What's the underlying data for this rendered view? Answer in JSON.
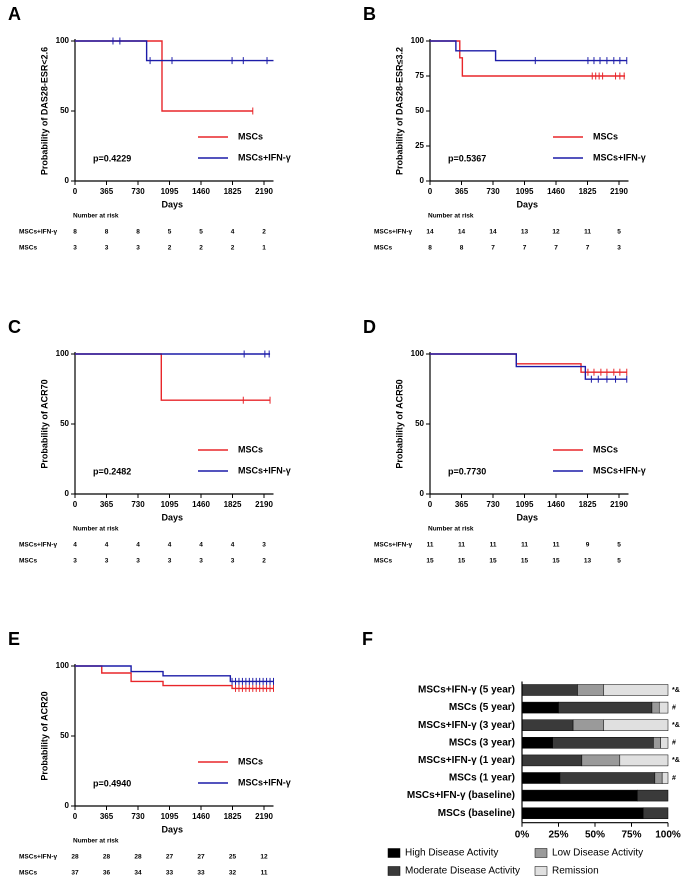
{
  "chart_data": [
    {
      "type": "step",
      "panel": "A",
      "ylabel": "Probability of DAS28-ESR<2.6",
      "xlabel": "Days",
      "xlim": [
        0,
        2300
      ],
      "xticks": [
        0,
        365,
        730,
        1095,
        1460,
        1825,
        2190
      ],
      "ylim": [
        0,
        100
      ],
      "yticks": [
        0,
        50,
        100
      ],
      "annotation": "p=0.4229",
      "series": [
        {
          "name": "MSCs",
          "color": "#e8262a",
          "x": [
            0,
            1008,
            1008,
            2060
          ],
          "values": [
            100,
            100,
            50,
            50
          ],
          "censored_x": [
            2060
          ],
          "censored_values": [
            50
          ]
        },
        {
          "name": "MSCs+IFN-γ",
          "color": "#1c1ca8",
          "x": [
            0,
            830,
            830,
            2300
          ],
          "values": [
            100,
            100,
            86,
            86
          ],
          "censored_x": [
            440,
            520,
            870,
            1124,
            1820,
            1950,
            2225
          ],
          "censored_values": [
            100,
            100,
            86,
            86,
            86,
            86,
            86
          ]
        }
      ],
      "risk_table": {
        "title": "Number at risk",
        "rows": [
          {
            "label": "MSCs+IFN-γ",
            "color": "#1c1ca8",
            "values": [
              8,
              8,
              8,
              5,
              5,
              4,
              2
            ]
          },
          {
            "label": "MSCs",
            "color": "#e8262a",
            "values": [
              3,
              3,
              3,
              2,
              2,
              2,
              1
            ]
          }
        ]
      }
    },
    {
      "type": "step",
      "panel": "B",
      "ylabel": "Probability of DAS28-ESR≤3.2",
      "xlabel": "Days",
      "xlim": [
        0,
        2300
      ],
      "xticks": [
        0,
        365,
        730,
        1095,
        1460,
        1825,
        2190
      ],
      "ylim": [
        0,
        100
      ],
      "yticks": [
        0,
        25,
        50,
        75,
        100
      ],
      "annotation": "p=0.5367",
      "series": [
        {
          "name": "MSCs",
          "color": "#e8262a",
          "x": [
            0,
            345,
            345,
            375,
            375,
            2260
          ],
          "values": [
            100,
            100,
            88,
            88,
            75,
            75
          ],
          "censored_x": [
            1880,
            1920,
            1960,
            2000,
            2150,
            2200,
            2250
          ],
          "censored_values": [
            75,
            75,
            75,
            75,
            75,
            75,
            75
          ]
        },
        {
          "name": "MSCs+IFN-γ",
          "color": "#1c1ca8",
          "x": [
            0,
            300,
            300,
            760,
            760,
            2280
          ],
          "values": [
            100,
            100,
            93,
            93,
            86,
            86
          ],
          "censored_x": [
            1220,
            1830,
            1900,
            1970,
            2050,
            2130,
            2200,
            2280
          ],
          "censored_values": [
            86,
            86,
            86,
            86,
            86,
            86,
            86,
            86
          ]
        }
      ],
      "risk_table": {
        "title": "Number at risk",
        "rows": [
          {
            "label": "MSCs+IFN-γ",
            "color": "#1c1ca8",
            "values": [
              14,
              14,
              14,
              13,
              12,
              11,
              5
            ]
          },
          {
            "label": "MSCs",
            "color": "#e8262a",
            "values": [
              8,
              8,
              7,
              7,
              7,
              7,
              3
            ]
          }
        ]
      }
    },
    {
      "type": "step",
      "panel": "C",
      "ylabel": "Probability of ACR70",
      "xlabel": "Days",
      "xlim": [
        0,
        2300
      ],
      "xticks": [
        0,
        365,
        730,
        1095,
        1460,
        1825,
        2190
      ],
      "ylim": [
        0,
        100
      ],
      "yticks": [
        0,
        50,
        100
      ],
      "annotation": "p=0.2482",
      "series": [
        {
          "name": "MSCs",
          "color": "#e8262a",
          "x": [
            0,
            1000,
            1000,
            2260
          ],
          "values": [
            100,
            100,
            67,
            67
          ],
          "censored_x": [
            1950,
            2260
          ],
          "censored_values": [
            67,
            67
          ]
        },
        {
          "name": "MSCs+IFN-γ",
          "color": "#1c1ca8",
          "x": [
            0,
            2260
          ],
          "values": [
            100,
            100
          ],
          "censored_x": [
            1960,
            2200,
            2250
          ],
          "censored_values": [
            100,
            100,
            100
          ]
        }
      ],
      "risk_table": {
        "title": "Number at risk",
        "rows": [
          {
            "label": "MSCs+IFN-γ",
            "color": "#1c1ca8",
            "values": [
              4,
              4,
              4,
              4,
              4,
              4,
              3
            ]
          },
          {
            "label": "MSCs",
            "color": "#e8262a",
            "values": [
              3,
              3,
              3,
              3,
              3,
              3,
              2
            ]
          }
        ]
      }
    },
    {
      "type": "step",
      "panel": "D",
      "ylabel": "Probability of ACR50",
      "xlabel": "Days",
      "xlim": [
        0,
        2300
      ],
      "xticks": [
        0,
        365,
        730,
        1095,
        1460,
        1825,
        2190
      ],
      "ylim": [
        0,
        100
      ],
      "yticks": [
        0,
        50,
        100
      ],
      "annotation": "p=0.7730",
      "series": [
        {
          "name": "MSCs",
          "color": "#e8262a",
          "x": [
            0,
            1000,
            1000,
            1750,
            1750,
            2280
          ],
          "values": [
            100,
            100,
            93,
            93,
            87,
            87
          ],
          "censored_x": [
            1830,
            1900,
            1980,
            2050,
            2130,
            2200,
            2280
          ],
          "censored_values": [
            87,
            87,
            87,
            87,
            87,
            87,
            87
          ]
        },
        {
          "name": "MSCs+IFN-γ",
          "color": "#1c1ca8",
          "x": [
            0,
            1000,
            1000,
            1800,
            1800,
            2280
          ],
          "values": [
            100,
            100,
            91,
            91,
            82,
            82
          ],
          "censored_x": [
            1870,
            1950,
            2050,
            2150,
            2280
          ],
          "censored_values": [
            82,
            82,
            82,
            82,
            82
          ]
        }
      ],
      "risk_table": {
        "title": "Number at risk",
        "rows": [
          {
            "label": "MSCs+IFN-γ",
            "color": "#1c1ca8",
            "values": [
              11,
              11,
              11,
              11,
              11,
              9,
              5
            ]
          },
          {
            "label": "MSCs",
            "color": "#e8262a",
            "values": [
              15,
              15,
              15,
              15,
              15,
              13,
              5
            ]
          }
        ]
      }
    },
    {
      "type": "step",
      "panel": "E",
      "ylabel": "Probability of ACR20",
      "xlabel": "Days",
      "xlim": [
        0,
        2300
      ],
      "xticks": [
        0,
        365,
        730,
        1095,
        1460,
        1825,
        2190
      ],
      "ylim": [
        0,
        100
      ],
      "yticks": [
        0,
        50,
        100
      ],
      "annotation": "p=0.4940",
      "series": [
        {
          "name": "MSCs",
          "color": "#e8262a",
          "x": [
            0,
            310,
            310,
            650,
            650,
            1020,
            1020,
            1820,
            1820,
            2300
          ],
          "values": [
            100,
            100,
            95,
            95,
            89,
            89,
            86,
            86,
            84,
            84
          ],
          "censored_x": [
            1860,
            1900,
            1940,
            1980,
            2020,
            2060,
            2100,
            2140,
            2180,
            2220,
            2260,
            2300
          ],
          "censored_values": [
            84,
            84,
            84,
            84,
            84,
            84,
            84,
            84,
            84,
            84,
            84,
            84
          ]
        },
        {
          "name": "MSCs+IFN-γ",
          "color": "#1c1ca8",
          "x": [
            0,
            650,
            650,
            1020,
            1020,
            1800,
            1800,
            2300
          ],
          "values": [
            100,
            100,
            96,
            96,
            93,
            93,
            89,
            89
          ],
          "censored_x": [
            1820,
            1860,
            1900,
            1940,
            1980,
            2020,
            2060,
            2100,
            2140,
            2180,
            2220,
            2260,
            2300
          ],
          "censored_values": [
            89,
            89,
            89,
            89,
            89,
            89,
            89,
            89,
            89,
            89,
            89,
            89,
            89
          ]
        }
      ],
      "risk_table": {
        "title": "Number at risk",
        "rows": [
          {
            "label": "MSCs+IFN-γ",
            "color": "#1c1ca8",
            "values": [
              28,
              28,
              28,
              27,
              27,
              25,
              12
            ]
          },
          {
            "label": "MSCs",
            "color": "#e8262a",
            "values": [
              37,
              36,
              34,
              33,
              33,
              32,
              11
            ]
          }
        ]
      }
    },
    {
      "type": "stacked_barh",
      "panel": "F",
      "categories": [
        "MSCs+IFN-γ (5 year)",
        "MSCs (5 year)",
        "MSCs+IFN-γ (3 year)",
        "MSCs (3 year)",
        "MSCs+IFN-γ (1 year)",
        "MSCs (1 year)",
        "MSCs+IFN-γ (baseline)",
        "MSCs (baseline)"
      ],
      "row_notes": [
        "*&",
        "#",
        "*&",
        "#",
        "*&",
        "#",
        null,
        null
      ],
      "xlim": [
        0,
        100
      ],
      "xticks": [
        {
          "value": 0,
          "label": "0%"
        },
        {
          "value": 25,
          "label": "25%"
        },
        {
          "value": 50,
          "label": "50%"
        },
        {
          "value": 75,
          "label": "75%"
        },
        {
          "value": 100,
          "label": "100%"
        }
      ],
      "series": [
        {
          "name": "High Disease Activity",
          "color": "#000000",
          "values": [
            0,
            25,
            0,
            21,
            0,
            26,
            79,
            83
          ]
        },
        {
          "name": "Moderate Disease Activity",
          "color": "#3a3a3a",
          "values": [
            38,
            64,
            35,
            69,
            41,
            65,
            21,
            17
          ]
        },
        {
          "name": "Low Disease Activity",
          "color": "#9a9a9a",
          "values": [
            18,
            5,
            21,
            5,
            26,
            5,
            0,
            0
          ]
        },
        {
          "name": "Remission",
          "color": "#e0e0e0",
          "values": [
            44,
            6,
            44,
            5,
            33,
            4,
            0,
            0
          ]
        }
      ]
    }
  ]
}
